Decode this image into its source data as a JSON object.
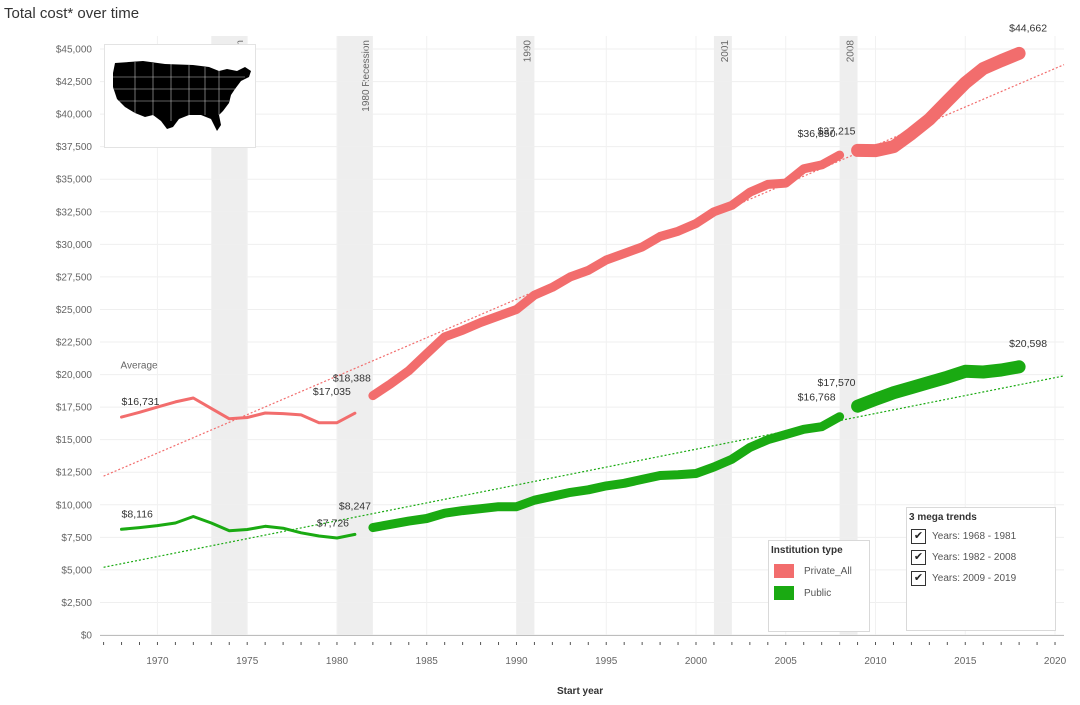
{
  "title": "Total cost* over time",
  "chart_data": {
    "type": "line",
    "xlabel": "Start year",
    "ylabel": "",
    "xlim": [
      1966.8,
      2020.5
    ],
    "ylim": [
      0,
      46000
    ],
    "x_ticks": [
      1970,
      1975,
      1980,
      1985,
      1990,
      1995,
      2000,
      2005,
      2010,
      2015,
      2020
    ],
    "y_ticks": [
      0,
      2500,
      5000,
      7500,
      10000,
      12500,
      15000,
      17500,
      20000,
      22500,
      25000,
      27500,
      30000,
      32500,
      35000,
      37500,
      40000,
      42500,
      45000
    ],
    "y_tick_labels": [
      "$0",
      "$2,500",
      "$5,000",
      "$7,500",
      "$10,000",
      "$12,500",
      "$15,000",
      "$17,500",
      "$20,000",
      "$22,500",
      "$25,000",
      "$27,500",
      "$30,000",
      "$32,500",
      "$35,000",
      "$37,500",
      "$40,000",
      "$42,500",
      "$45,000"
    ],
    "grid": true,
    "series": [
      {
        "name": "Private_All",
        "color": "#f26d6d",
        "segments": [
          {
            "x": [
              1968,
              1969,
              1970,
              1971,
              1972,
              1973,
              1974,
              1975,
              1976,
              1977,
              1978,
              1979,
              1980,
              1981
            ],
            "y": [
              16731,
              17100,
              17500,
              17900,
              18200,
              17400,
              16600,
              16700,
              17050,
              17000,
              16900,
              16300,
              16300,
              17035
            ]
          },
          {
            "x": [
              1982,
              1983,
              1984,
              1985,
              1986,
              1987,
              1988,
              1989,
              1990,
              1991,
              1992,
              1993,
              1994,
              1995,
              1996,
              1997,
              1998,
              1999,
              2000,
              2001,
              2002,
              2003,
              2004,
              2005,
              2006,
              2007,
              2008
            ],
            "y": [
              18388,
              19300,
              20300,
              21600,
              22900,
              23400,
              24000,
              24500,
              25000,
              26100,
              26700,
              27500,
              28000,
              28800,
              29300,
              29800,
              30600,
              31000,
              31600,
              32500,
              33000,
              34000,
              34600,
              34700,
              35800,
              36100,
              36850
            ]
          },
          {
            "x": [
              2009,
              2010,
              2011,
              2012,
              2013,
              2014,
              2015,
              2016,
              2017,
              2018
            ],
            "y": [
              37215,
              37200,
              37500,
              38500,
              39600,
              41000,
              42400,
              43500,
              44100,
              44662
            ]
          }
        ],
        "trend": {
          "x": [
            1967,
            2020.5
          ],
          "y": [
            12200,
            43800
          ]
        }
      },
      {
        "name": "Public",
        "color": "#1aaa12",
        "segments": [
          {
            "x": [
              1968,
              1969,
              1970,
              1971,
              1972,
              1973,
              1974,
              1975,
              1976,
              1977,
              1978,
              1979,
              1980,
              1981
            ],
            "y": [
              8116,
              8250,
              8400,
              8600,
              9100,
              8600,
              8000,
              8100,
              8350,
              8200,
              7850,
              7600,
              7450,
              7726
            ]
          },
          {
            "x": [
              1982,
              1983,
              1984,
              1985,
              1986,
              1987,
              1988,
              1989,
              1990,
              1991,
              1992,
              1993,
              1994,
              1995,
              1996,
              1997,
              1998,
              1999,
              2000,
              2001,
              2002,
              2003,
              2004,
              2005,
              2006,
              2007,
              2008
            ],
            "y": [
              8247,
              8500,
              8750,
              8950,
              9350,
              9550,
              9700,
              9850,
              9850,
              10350,
              10650,
              10950,
              11150,
              11450,
              11650,
              11950,
              12250,
              12300,
              12400,
              12900,
              13500,
              14400,
              15000,
              15400,
              15800,
              16000,
              16768
            ]
          },
          {
            "x": [
              2009,
              2010,
              2011,
              2012,
              2013,
              2014,
              2015,
              2016,
              2017,
              2018
            ],
            "y": [
              17570,
              18100,
              18600,
              19000,
              19400,
              19800,
              20250,
              20200,
              20350,
              20598
            ]
          }
        ],
        "trend": {
          "x": [
            1967,
            2020.5
          ],
          "y": [
            5200,
            19900
          ]
        }
      }
    ],
    "recessions": [
      {
        "start": 1973,
        "end": 1975,
        "label": "Recession"
      },
      {
        "start": 1980,
        "end": 1982,
        "label": "1980  Recession"
      },
      {
        "start": 1990,
        "end": 1991,
        "label": "1990"
      },
      {
        "start": 2001,
        "end": 2002,
        "label": "2001"
      },
      {
        "start": 2008,
        "end": 2009,
        "label": "2008"
      }
    ],
    "annotations": {
      "average_label": "Average",
      "data_labels": [
        {
          "text": "$16,731",
          "x": 1968,
          "y": 16731,
          "dx": 0,
          "dy": -12,
          "anchor": "start"
        },
        {
          "text": "$17,035",
          "x": 1981,
          "y": 17035,
          "dx": -42,
          "dy": -18,
          "anchor": "start"
        },
        {
          "text": "$18,388",
          "x": 1982,
          "y": 18388,
          "dx": -40,
          "dy": -14,
          "anchor": "start"
        },
        {
          "text": "$36,850",
          "x": 2008,
          "y": 36850,
          "dx": -42,
          "dy": -18,
          "anchor": "start"
        },
        {
          "text": "$37,215",
          "x": 2009,
          "y": 37215,
          "dx": -40,
          "dy": -16,
          "anchor": "start"
        },
        {
          "text": "$44,662",
          "x": 2018,
          "y": 44662,
          "dx": -10,
          "dy": -22,
          "anchor": "start"
        },
        {
          "text": "$8,116",
          "x": 1968,
          "y": 8116,
          "dx": 0,
          "dy": -12,
          "anchor": "start"
        },
        {
          "text": "$7,726",
          "x": 1981,
          "y": 7726,
          "dx": -38,
          "dy": -8,
          "anchor": "start"
        },
        {
          "text": "$8,247",
          "x": 1982,
          "y": 8247,
          "dx": -34,
          "dy": -18,
          "anchor": "start"
        },
        {
          "text": "$16,768",
          "x": 2008,
          "y": 16768,
          "dx": -42,
          "dy": -16,
          "anchor": "start"
        },
        {
          "text": "$17,570",
          "x": 2009,
          "y": 17570,
          "dx": -40,
          "dy": -20,
          "anchor": "start"
        },
        {
          "text": "$20,598",
          "x": 2018,
          "y": 20598,
          "dx": -10,
          "dy": -20,
          "anchor": "start"
        }
      ]
    }
  },
  "legend": {
    "title": "Institution type",
    "items": [
      {
        "label": "Private_All",
        "color": "#f26d6d"
      },
      {
        "label": "Public",
        "color": "#1aaa12"
      }
    ]
  },
  "trends_filter": {
    "title": "3 mega trends",
    "items": [
      {
        "label": "Years: 1968 - 1981",
        "checked": true
      },
      {
        "label": "Years: 1982 - 2008",
        "checked": true
      },
      {
        "label": "Years: 2009 - 2019",
        "checked": true
      }
    ]
  },
  "map": {
    "icon": "us-map-icon"
  }
}
